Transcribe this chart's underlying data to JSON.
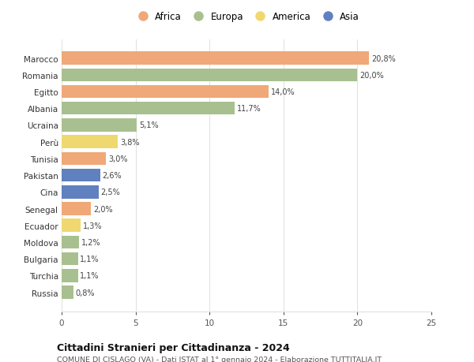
{
  "countries": [
    "Marocco",
    "Romania",
    "Egitto",
    "Albania",
    "Ucraina",
    "Perù",
    "Tunisia",
    "Pakistan",
    "Cina",
    "Senegal",
    "Ecuador",
    "Moldova",
    "Bulgaria",
    "Turchia",
    "Russia"
  ],
  "values": [
    20.8,
    20.0,
    14.0,
    11.7,
    5.1,
    3.8,
    3.0,
    2.6,
    2.5,
    2.0,
    1.3,
    1.2,
    1.1,
    1.1,
    0.8
  ],
  "labels": [
    "20,8%",
    "20,0%",
    "14,0%",
    "11,7%",
    "5,1%",
    "3,8%",
    "3,0%",
    "2,6%",
    "2,5%",
    "2,0%",
    "1,3%",
    "1,2%",
    "1,1%",
    "1,1%",
    "0,8%"
  ],
  "continents": [
    "Africa",
    "Europa",
    "Africa",
    "Europa",
    "Europa",
    "America",
    "Africa",
    "Asia",
    "Asia",
    "Africa",
    "America",
    "Europa",
    "Europa",
    "Europa",
    "Europa"
  ],
  "colors": {
    "Africa": "#F0A878",
    "Europa": "#A8C090",
    "America": "#F0D870",
    "Asia": "#6080C0"
  },
  "legend_order": [
    "Africa",
    "Europa",
    "America",
    "Asia"
  ],
  "xlim": [
    0,
    25
  ],
  "xticks": [
    0,
    5,
    10,
    15,
    20,
    25
  ],
  "title": "Cittadini Stranieri per Cittadinanza - 2024",
  "subtitle": "COMUNE DI CISLAGO (VA) - Dati ISTAT al 1° gennaio 2024 - Elaborazione TUTTITALIA.IT",
  "background_color": "#ffffff",
  "grid_color": "#e0e0e0",
  "bar_height": 0.78
}
